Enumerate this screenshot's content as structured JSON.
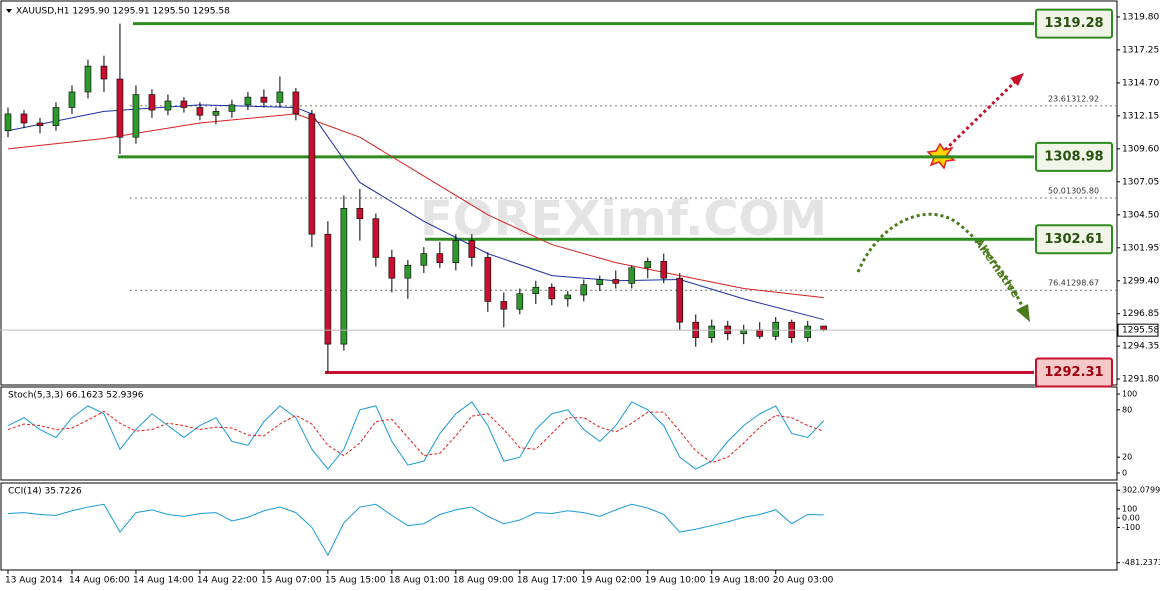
{
  "chart_data": {
    "type": "candlestick",
    "title": "XAUUSD,H1 1295.90 1295.91 1295.50 1295.58",
    "watermark": "FOREXimf.COM",
    "annotation": "Alternative",
    "xlim": [
      -0.5,
      69.4
    ],
    "xticks": [
      {
        "value": 0,
        "label": "13 Aug 2014"
      },
      {
        "value": 4,
        "label": "14 Aug 06:00"
      },
      {
        "value": 8,
        "label": "14 Aug 14:00"
      },
      {
        "value": 12,
        "label": "14 Aug 22:00"
      },
      {
        "value": 16,
        "label": "15 Aug 07:00"
      },
      {
        "value": 20,
        "label": "15 Aug 15:00"
      },
      {
        "value": 24,
        "label": "18 Aug 01:00"
      },
      {
        "value": 28,
        "label": "18 Aug 09:00"
      },
      {
        "value": 32,
        "label": "18 Aug 17:00"
      },
      {
        "value": 36,
        "label": "19 Aug 02:00"
      },
      {
        "value": 40,
        "label": "19 Aug 10:00"
      },
      {
        "value": 44,
        "label": "19 Aug 18:00"
      },
      {
        "value": 48,
        "label": "20 Aug 03:00"
      }
    ],
    "ylim": [
      1291.34,
      1321.11
    ],
    "yticks": [
      {
        "value": 1319.8,
        "label": "1319.80"
      },
      1317.25,
      {
        "value": 1314.7,
        "label": "1314.70"
      },
      1312.15,
      {
        "value": 1309.6,
        "label": "1309.60"
      },
      1307.05,
      {
        "value": 1304.5,
        "label": "1304.50"
      },
      1301.95,
      {
        "value": 1299.4,
        "label": "1299.40"
      },
      1296.85,
      1294.35,
      {
        "value": 1291.8,
        "label": "1291.80"
      }
    ],
    "current_price": 1295.58,
    "up_color": "#2e9a2e",
    "down_color": "#c8102e",
    "open": [
      1311.0,
      1312.3,
      1311.6,
      1311.4,
      1312.8,
      1314.0,
      1316.0,
      1315.0,
      1310.5,
      1313.8,
      1312.6,
      1313.3,
      1312.8,
      1312.2,
      1312.5,
      1313.0,
      1313.6,
      1313.2,
      1314.0,
      1312.3,
      1303.0,
      1294.5,
      1305.0,
      1304.2,
      1301.2,
      1299.6,
      1300.6,
      1301.5,
      1300.8,
      1302.5,
      1301.2,
      1297.8,
      1297.2,
      1298.4,
      1298.9,
      1298.0,
      1298.3,
      1299.1,
      1299.5,
      1299.2,
      1300.4,
      1300.9,
      1299.6,
      1296.2,
      1295.0,
      1295.9,
      1295.3,
      1295.6,
      1295.1,
      1296.2,
      1295.0,
      1295.9
    ],
    "high": [
      1312.8,
      1312.6,
      1312.0,
      1313.2,
      1314.5,
      1316.5,
      1316.8,
      1319.28,
      1314.5,
      1314.2,
      1313.8,
      1313.6,
      1313.2,
      1312.8,
      1313.4,
      1314.0,
      1314.2,
      1315.2,
      1314.3,
      1312.6,
      1304.0,
      1306.0,
      1306.5,
      1304.6,
      1301.8,
      1301.0,
      1302.0,
      1302.4,
      1303.0,
      1303.0,
      1301.6,
      1298.5,
      1298.8,
      1299.4,
      1299.2,
      1298.6,
      1299.5,
      1299.8,
      1300.2,
      1300.6,
      1301.2,
      1301.5,
      1300.0,
      1296.8,
      1296.4,
      1296.3,
      1296.0,
      1296.2,
      1296.6,
      1296.4,
      1296.3,
      1295.91
    ],
    "low": [
      1310.5,
      1311.2,
      1310.8,
      1311.0,
      1312.3,
      1313.5,
      1314.0,
      1309.2,
      1310.0,
      1312.0,
      1312.2,
      1312.4,
      1311.8,
      1311.5,
      1312.0,
      1312.6,
      1312.8,
      1312.8,
      1311.8,
      1302.0,
      1292.31,
      1294.0,
      1302.5,
      1300.5,
      1298.5,
      1298.0,
      1300.0,
      1300.4,
      1300.2,
      1300.5,
      1297.0,
      1295.8,
      1296.8,
      1297.6,
      1297.5,
      1297.4,
      1297.8,
      1298.6,
      1298.8,
      1298.8,
      1299.6,
      1299.2,
      1295.6,
      1294.3,
      1294.6,
      1294.8,
      1294.5,
      1294.9,
      1294.8,
      1294.6,
      1294.7,
      1295.5
    ],
    "close": [
      1312.3,
      1311.6,
      1311.4,
      1312.8,
      1314.0,
      1316.0,
      1315.0,
      1310.5,
      1313.8,
      1312.6,
      1313.3,
      1312.8,
      1312.2,
      1312.5,
      1313.0,
      1313.6,
      1313.2,
      1314.0,
      1312.3,
      1303.0,
      1294.5,
      1305.0,
      1304.2,
      1301.2,
      1299.6,
      1300.6,
      1301.5,
      1300.8,
      1302.5,
      1301.2,
      1297.8,
      1297.2,
      1298.4,
      1298.9,
      1298.0,
      1298.3,
      1299.1,
      1299.5,
      1299.2,
      1300.4,
      1300.9,
      1299.6,
      1296.2,
      1295.0,
      1295.9,
      1295.3,
      1295.6,
      1295.1,
      1296.2,
      1295.0,
      1295.9,
      1295.58
    ],
    "moving_averages": [
      {
        "color": "#1c2fa0",
        "x": [
          0,
          6,
          12,
          18,
          19,
          22,
          26,
          30,
          34,
          38,
          42,
          46,
          51
        ],
        "values": [
          1311,
          1312.5,
          1313,
          1312.8,
          1312.3,
          1307,
          1304,
          1301.5,
          1299.8,
          1299.4,
          1299.5,
          1298,
          1296.4
        ]
      },
      {
        "color": "#d42020",
        "x": [
          0,
          6,
          12,
          18,
          22,
          26,
          30,
          34,
          38,
          42,
          46,
          51
        ],
        "values": [
          1309.6,
          1310.4,
          1311.6,
          1312.3,
          1310.5,
          1307.5,
          1304.5,
          1302.2,
          1300.8,
          1299.8,
          1298.8,
          1298.1
        ]
      }
    ],
    "levels": [
      {
        "value": 1319.28,
        "color": "#2e8b1e"
      },
      {
        "value": 1308.98,
        "color": "#2e8b1e"
      },
      {
        "value": 1302.61,
        "color": "#2e8b1e"
      },
      {
        "value": 1292.31,
        "color": "#c8102e"
      }
    ],
    "fib": [
      {
        "pct": 23.6,
        "value": 1312.92
      },
      {
        "pct": {
          "value": 50,
          "label": "50.0"
        },
        "value": {
          "value": 1305.8,
          "label": "1305.80"
        }
      },
      {
        "pct": 76.4,
        "value": 1298.67
      }
    ],
    "indicators": [
      {
        "type": "line",
        "title": "Stoch(5,3,3) 66.1623 52.9396",
        "ylim": [
          -8.9,
          108.9
        ],
        "yticks": [
          100,
          80,
          20,
          0
        ],
        "series": [
          {
            "color": "#1a9bd7",
            "values": [
              60,
              70,
              55,
              45,
              70,
              85,
              75,
              30,
              55,
              75,
              60,
              45,
              60,
              70,
              40,
              35,
              65,
              85,
              70,
              30,
              5,
              30,
              80,
              85,
              40,
              10,
              15,
              50,
              75,
              90,
              60,
              15,
              20,
              55,
              75,
              80,
              55,
              40,
              60,
              90,
              80,
              60,
              20,
              5,
              15,
              40,
              60,
              75,
              85,
              50,
              45,
              66.1623
            ]
          },
          {
            "color": "#e02020",
            "dashed": true,
            "values": [
              55,
              62,
              60,
              55,
              57,
              67,
              78,
              63,
              53,
              55,
              63,
              60,
              55,
              58,
              57,
              48,
              47,
              62,
              73,
              62,
              35,
              22,
              38,
              65,
              68,
              45,
              22,
              25,
              47,
              72,
              75,
              55,
              32,
              30,
              50,
              70,
              70,
              58,
              52,
              63,
              77,
              77,
              53,
              28,
              13,
              20,
              38,
              58,
              73,
              70,
              60,
              52.9396
            ]
          }
        ]
      },
      {
        "type": "line",
        "title": "CCI(14) 35.7226",
        "ylim": [
          -560,
          380
        ],
        "yticks": [
          302.0799,
          100,
          {
            "value": 0,
            "label": "0.00"
          },
          -100,
          -481.2373
        ],
        "series": [
          {
            "color": "#1a9bd7",
            "values": [
              50,
              60,
              40,
              30,
              80,
              120,
              150,
              -150,
              60,
              90,
              40,
              20,
              50,
              60,
              -30,
              10,
              80,
              120,
              60,
              -100,
              -400,
              -50,
              120,
              150,
              30,
              -80,
              -60,
              40,
              90,
              120,
              20,
              -60,
              -20,
              60,
              50,
              80,
              60,
              20,
              90,
              150,
              110,
              40,
              -150,
              -120,
              -80,
              -40,
              10,
              40,
              90,
              -60,
              40,
              35.7226
            ]
          }
        ]
      }
    ]
  }
}
